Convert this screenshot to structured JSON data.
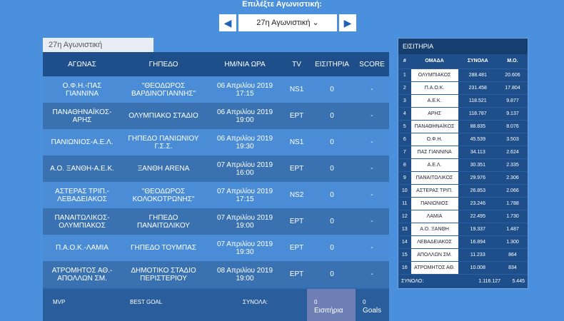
{
  "header": {
    "prompt": "Επιλέξτε Αγωνιστική:",
    "selected": "27η Αγωνιστική"
  },
  "tab": "27η Αγωνιστική",
  "matches": {
    "columns": [
      "ΑΓΩΝΑΣ",
      "ΓΗΠΕΔΟ",
      "ΗΜ/ΝΙΑ ΩΡΑ",
      "TV",
      "ΕΙΣΙΤΗΡΙΑ",
      "SCORE"
    ],
    "rows": [
      [
        "Ο.Φ.Η.-ΠΑΣ ΓΙΑΝΝΙΝΑ",
        "\"ΘΕΟΔΩΡΟΣ ΒΑΡΔΙΝΟΓΙΑΝΝΗΣ\"",
        "06 Απριλίου 2019",
        "17:15",
        "NS1",
        "0",
        "-"
      ],
      [
        "ΠΑΝΑΘΗΝΑΪΚΟΣ-ΑΡΗΣ",
        "ΟΛΥΜΠΙΑΚΟ ΣΤΑΔΙΟ",
        "06 Απριλίου 2019",
        "19:00",
        "ΕΡΤ",
        "0",
        "-"
      ],
      [
        "ΠΑΝΙΩΝΙΟΣ-Α.Ε.Λ.",
        "ΓΗΠΕΔΟ ΠΑΝΙΩΝΙΟΥ Γ.Σ.Σ.",
        "06 Απριλίου 2019",
        "19:30",
        "NS1",
        "0",
        "-"
      ],
      [
        "Α.Ο. ΞΑΝΘΗ-Α.Ε.Κ.",
        "ΞΑΝΘΗ ARENA",
        "07 Απριλίου 2019",
        "16:00",
        "ΕΡΤ",
        "0",
        "-"
      ],
      [
        "ΑΣΤΕΡΑΣ ΤΡΙΠ.-ΛΕΒΑΔΕΙΑΚΟΣ",
        "\"ΘΕΟΔΩΡΟΣ ΚΟΛΟΚΟΤΡΩΝΗΣ\"",
        "07 Απριλίου 2019",
        "17:15",
        "NS2",
        "0",
        "-"
      ],
      [
        "ΠΑΝΑΙΤΩΛΙΚΟΣ-ΟΛΥΜΠΙΑΚΟΣ",
        "ΓΗΠΕΔΟ ΠΑΝΑΙΤΩΛΙΚΟΥ",
        "07 Απριλίου 2019",
        "19:00",
        "ΕΡΤ",
        "0",
        "-"
      ],
      [
        "Π.Α.Ο.Κ.-ΛΑΜΙΑ",
        "ΓΗΠΕΔΟ ΤΟΥΜΠΑΣ",
        "07 Απριλίου 2019",
        "19:30",
        "ΕΡΤ",
        "0",
        "-"
      ],
      [
        "ΑΤΡΟΜΗΤΟΣ ΑΘ.-ΑΠΟΛΛΩΝ ΣΜ.",
        "ΔΗΜΟΤΙΚΟ ΣΤΑΔΙΟ ΠΕΡΙΣΤΕΡΙΟΥ",
        "08 Απριλίου 2019",
        "19:00",
        "ΕΡΤ",
        "0",
        "-"
      ]
    ]
  },
  "footer": {
    "mvp": "MVP",
    "best_goal": "BEST GOAL",
    "totals": "ΣΥΝΟΛΑ:",
    "tickets_value": "0",
    "tickets_label": "Εισιτήρια",
    "goals_value": "0",
    "goals_label": "Goals"
  },
  "tickets": {
    "title": "ΕΙΣΙΤΗΡΙΑ",
    "columns": [
      "#",
      "ΟΜΑΔΑ",
      "ΣΥΝΟΛΑ",
      "Μ.Ο."
    ],
    "rows": [
      [
        "1",
        "ΟΛΥΜΠΙΑΚΟΣ",
        "288.481",
        "20.606"
      ],
      [
        "2",
        "Π.Α.Ο.Κ.",
        "231.458",
        "17.804"
      ],
      [
        "3",
        "Α.Ε.Κ.",
        "118.521",
        "9.877"
      ],
      [
        "4",
        "ΑΡΗΣ",
        "118.787",
        "9.137"
      ],
      [
        "5",
        "ΠΑΝΑΘΗΝΑΪΚΟΣ",
        "88.835",
        "8.076"
      ],
      [
        "6",
        "Ο.Φ.Η.",
        "45.539",
        "3.503"
      ],
      [
        "7",
        "ΠΑΣ ΓΙΑΝΝΙΝΑ",
        "34.113",
        "2.624"
      ],
      [
        "8",
        "Α.Ε.Λ.",
        "30.351",
        "2.335"
      ],
      [
        "9",
        "ΠΑΝΑΙΤΩΛΙΚΟΣ",
        "29.976",
        "2.306"
      ],
      [
        "10",
        "ΑΣΤΕΡΑΣ ΤΡΙΠ.",
        "26.853",
        "2.066"
      ],
      [
        "11",
        "ΠΑΝΙΩΝΙΟΣ",
        "23.246",
        "1.788"
      ],
      [
        "12",
        "ΛΑΜΙΑ",
        "22.495",
        "1.730"
      ],
      [
        "13",
        "Α.Ο. ΞΑΝΘΗ",
        "19.337",
        "1.487"
      ],
      [
        "14",
        "ΛΕΒΑΔΕΙΑΚΟΣ",
        "16.894",
        "1.300"
      ],
      [
        "15",
        "ΑΠΟΛΛΩΝ ΣΜ.",
        "11.233",
        "864"
      ],
      [
        "16",
        "ΑΤΡΟΜΗΤΟΣ ΑΘ.",
        "10.008",
        "834"
      ]
    ],
    "total_label": "ΣΥΝΟΛΟ:",
    "total": "1.116.127",
    "average": "5.445"
  }
}
